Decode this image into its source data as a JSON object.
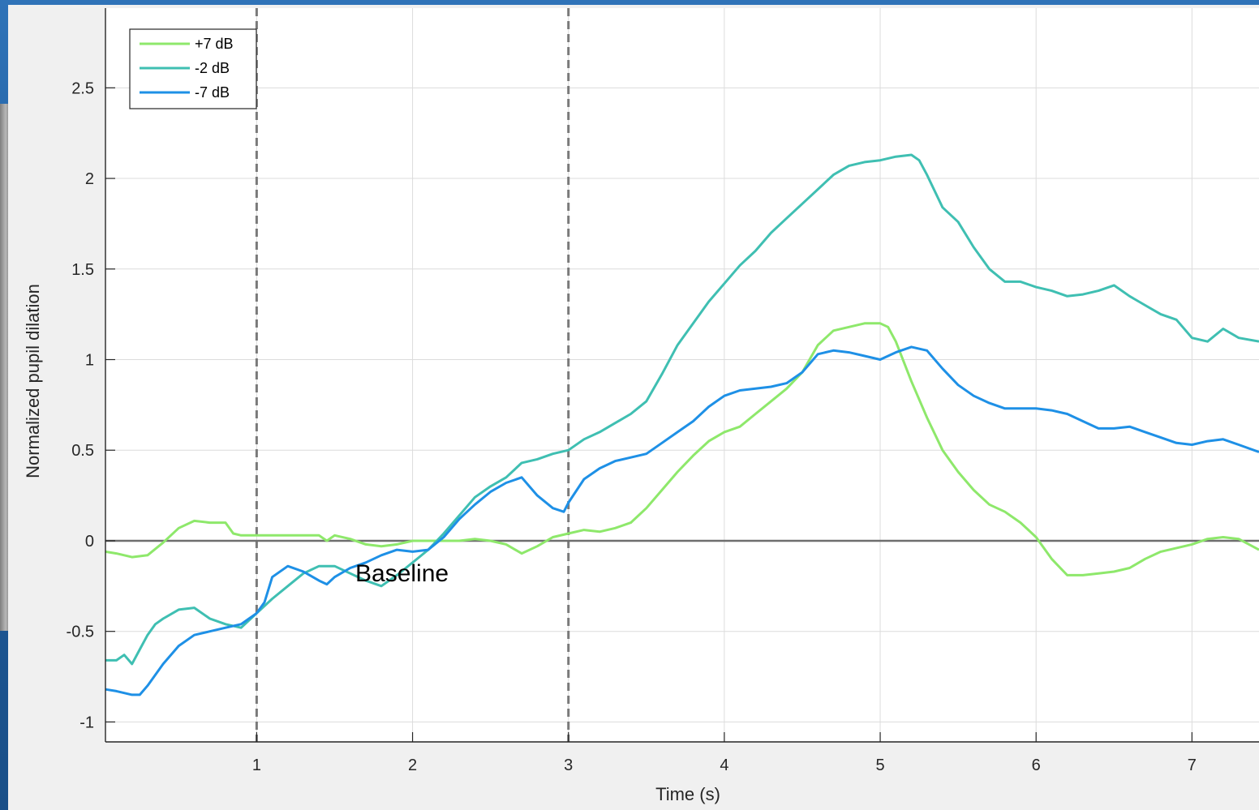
{
  "chart_data": {
    "type": "line",
    "xlabel": "Time (s)",
    "ylabel": "Normalized pupil dilation",
    "xlim": [
      0.03,
      7.43
    ],
    "ylim": [
      -1.11,
      2.94
    ],
    "x_ticks": [
      "1",
      "2",
      "3",
      "4",
      "5",
      "6",
      "7"
    ],
    "y_ticks": [
      "-1",
      "-0.5",
      "0",
      "0.5",
      "1",
      "1.5",
      "2",
      "2.5"
    ],
    "grid": true,
    "legend_position": "top-left",
    "annotation": "Baseline",
    "vlines": [
      1,
      3
    ],
    "hline": 0,
    "series": [
      {
        "name": "+7 dB",
        "color": "#8ee86b",
        "x": [
          0.03,
          0.1,
          0.2,
          0.3,
          0.4,
          0.5,
          0.6,
          0.7,
          0.8,
          0.85,
          0.9,
          1.0,
          1.1,
          1.2,
          1.3,
          1.4,
          1.45,
          1.5,
          1.6,
          1.7,
          1.8,
          1.9,
          2.0,
          2.1,
          2.2,
          2.3,
          2.4,
          2.5,
          2.6,
          2.7,
          2.8,
          2.9,
          3.0,
          3.1,
          3.2,
          3.3,
          3.4,
          3.5,
          3.6,
          3.7,
          3.8,
          3.9,
          4.0,
          4.1,
          4.2,
          4.3,
          4.4,
          4.5,
          4.6,
          4.7,
          4.8,
          4.9,
          5.0,
          5.05,
          5.1,
          5.2,
          5.3,
          5.4,
          5.5,
          5.6,
          5.7,
          5.8,
          5.9,
          6.0,
          6.1,
          6.2,
          6.3,
          6.4,
          6.5,
          6.6,
          6.7,
          6.8,
          6.9,
          7.0,
          7.1,
          7.2,
          7.3,
          7.43
        ],
        "values": [
          -0.06,
          -0.07,
          -0.09,
          -0.08,
          -0.01,
          0.07,
          0.11,
          0.1,
          0.1,
          0.04,
          0.03,
          0.03,
          0.03,
          0.03,
          0.03,
          0.03,
          0.0,
          0.03,
          0.01,
          -0.02,
          -0.03,
          -0.02,
          0.0,
          0.0,
          0.0,
          0.0,
          0.01,
          0.0,
          -0.02,
          -0.07,
          -0.03,
          0.02,
          0.04,
          0.06,
          0.05,
          0.07,
          0.1,
          0.18,
          0.28,
          0.38,
          0.47,
          0.55,
          0.6,
          0.63,
          0.7,
          0.77,
          0.84,
          0.93,
          1.08,
          1.16,
          1.18,
          1.2,
          1.2,
          1.18,
          1.1,
          0.88,
          0.68,
          0.5,
          0.38,
          0.28,
          0.2,
          0.16,
          0.1,
          0.02,
          -0.1,
          -0.19,
          -0.19,
          -0.18,
          -0.17,
          -0.15,
          -0.1,
          -0.06,
          -0.04,
          -0.02,
          0.01,
          0.02,
          0.01,
          -0.05
        ]
      },
      {
        "name": "-2 dB",
        "color": "#3fbfb2",
        "x": [
          0.03,
          0.1,
          0.15,
          0.2,
          0.25,
          0.3,
          0.35,
          0.4,
          0.5,
          0.6,
          0.7,
          0.8,
          0.9,
          1.0,
          1.1,
          1.2,
          1.3,
          1.4,
          1.5,
          1.6,
          1.7,
          1.8,
          1.9,
          2.0,
          2.1,
          2.2,
          2.3,
          2.4,
          2.5,
          2.6,
          2.7,
          2.8,
          2.9,
          3.0,
          3.1,
          3.2,
          3.3,
          3.4,
          3.5,
          3.6,
          3.7,
          3.8,
          3.9,
          4.0,
          4.1,
          4.2,
          4.3,
          4.4,
          4.5,
          4.6,
          4.7,
          4.8,
          4.9,
          5.0,
          5.1,
          5.2,
          5.25,
          5.3,
          5.4,
          5.5,
          5.6,
          5.7,
          5.8,
          5.9,
          6.0,
          6.1,
          6.2,
          6.3,
          6.4,
          6.5,
          6.6,
          6.7,
          6.8,
          6.9,
          7.0,
          7.1,
          7.2,
          7.3,
          7.43
        ],
        "values": [
          -0.66,
          -0.66,
          -0.63,
          -0.68,
          -0.6,
          -0.52,
          -0.46,
          -0.43,
          -0.38,
          -0.37,
          -0.43,
          -0.46,
          -0.48,
          -0.4,
          -0.32,
          -0.25,
          -0.18,
          -0.14,
          -0.14,
          -0.18,
          -0.22,
          -0.25,
          -0.19,
          -0.12,
          -0.05,
          0.04,
          0.14,
          0.24,
          0.3,
          0.35,
          0.43,
          0.45,
          0.48,
          0.5,
          0.56,
          0.6,
          0.65,
          0.7,
          0.77,
          0.92,
          1.08,
          1.2,
          1.32,
          1.42,
          1.52,
          1.6,
          1.7,
          1.78,
          1.86,
          1.94,
          2.02,
          2.07,
          2.09,
          2.1,
          2.12,
          2.13,
          2.1,
          2.02,
          1.84,
          1.76,
          1.62,
          1.5,
          1.43,
          1.43,
          1.4,
          1.38,
          1.35,
          1.36,
          1.38,
          1.41,
          1.35,
          1.3,
          1.25,
          1.22,
          1.12,
          1.1,
          1.17,
          1.12,
          1.1
        ]
      },
      {
        "name": "-7 dB",
        "color": "#1e90e6",
        "x": [
          0.03,
          0.1,
          0.2,
          0.25,
          0.3,
          0.4,
          0.5,
          0.6,
          0.7,
          0.8,
          0.9,
          1.0,
          1.05,
          1.1,
          1.2,
          1.3,
          1.4,
          1.45,
          1.5,
          1.6,
          1.7,
          1.8,
          1.9,
          2.0,
          2.1,
          2.2,
          2.3,
          2.4,
          2.5,
          2.6,
          2.7,
          2.8,
          2.9,
          2.97,
          3.0,
          3.1,
          3.2,
          3.3,
          3.4,
          3.5,
          3.6,
          3.7,
          3.8,
          3.9,
          4.0,
          4.1,
          4.2,
          4.3,
          4.4,
          4.5,
          4.6,
          4.7,
          4.8,
          4.9,
          5.0,
          5.1,
          5.2,
          5.3,
          5.4,
          5.5,
          5.6,
          5.7,
          5.8,
          5.9,
          6.0,
          6.1,
          6.2,
          6.3,
          6.4,
          6.5,
          6.6,
          6.7,
          6.8,
          6.9,
          7.0,
          7.1,
          7.2,
          7.3,
          7.43
        ],
        "values": [
          -0.82,
          -0.83,
          -0.85,
          -0.85,
          -0.8,
          -0.68,
          -0.58,
          -0.52,
          -0.5,
          -0.48,
          -0.46,
          -0.4,
          -0.34,
          -0.2,
          -0.14,
          -0.17,
          -0.22,
          -0.24,
          -0.2,
          -0.15,
          -0.12,
          -0.08,
          -0.05,
          -0.06,
          -0.05,
          0.02,
          0.12,
          0.2,
          0.27,
          0.32,
          0.35,
          0.25,
          0.18,
          0.16,
          0.21,
          0.34,
          0.4,
          0.44,
          0.46,
          0.48,
          0.54,
          0.6,
          0.66,
          0.74,
          0.8,
          0.83,
          0.84,
          0.85,
          0.87,
          0.93,
          1.03,
          1.05,
          1.04,
          1.02,
          1.0,
          1.04,
          1.07,
          1.05,
          0.95,
          0.86,
          0.8,
          0.76,
          0.73,
          0.73,
          0.73,
          0.72,
          0.7,
          0.66,
          0.62,
          0.62,
          0.63,
          0.6,
          0.57,
          0.54,
          0.53,
          0.55,
          0.56,
          0.53,
          0.49
        ]
      }
    ]
  }
}
